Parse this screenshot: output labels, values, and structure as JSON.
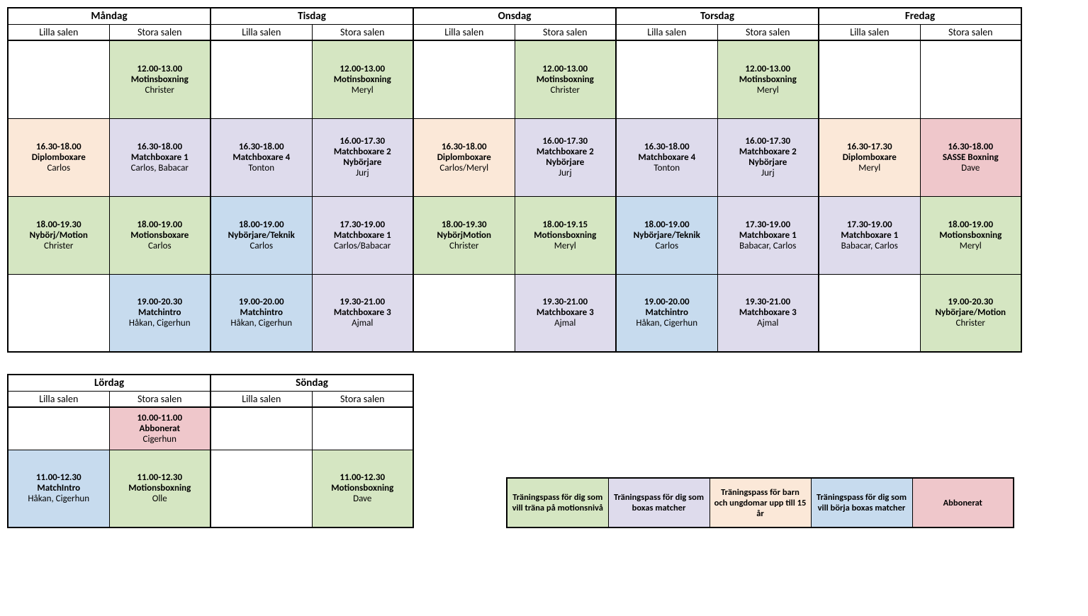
{
  "colors": {
    "green": "#d5e6c2",
    "purple": "#dedbec",
    "peach": "#fbe8d8",
    "blue": "#c7dbee",
    "pink": "#efc7cb",
    "white": "#ffffff"
  },
  "rooms": [
    "Lilla salen",
    "Stora salen"
  ],
  "weekdays": [
    {
      "name": "Måndag",
      "rows": [
        [
          null,
          {
            "time": "12.00-13.00",
            "title": "Motinsboxning",
            "instr": "Christer",
            "color": "green"
          }
        ],
        [
          {
            "time": "16.30-18.00",
            "title": "Diplomboxare",
            "instr": "Carlos",
            "color": "peach"
          },
          {
            "time": "16.30-18.00",
            "title": "Matchboxare 1",
            "instr": "Carlos, Babacar",
            "color": "purple"
          }
        ],
        [
          {
            "time": "18.00-19.30",
            "title": "Nybörj/Motion",
            "instr": "Christer",
            "color": "green"
          },
          {
            "time": "18.00-19.00",
            "title": "Motionsboxare",
            "instr": "Carlos",
            "color": "green"
          }
        ],
        [
          null,
          {
            "time": "19.00-20.30",
            "title": "Matchintro",
            "instr": "Håkan, Cigerhun",
            "color": "blue"
          }
        ]
      ]
    },
    {
      "name": "Tisdag",
      "rows": [
        [
          null,
          {
            "time": "12.00-13.00",
            "title": "Motinsboxning",
            "instr": "Meryl",
            "color": "green"
          }
        ],
        [
          {
            "time": "16.30-18.00",
            "title": "Matchboxare 4",
            "instr": "Tonton",
            "color": "purple"
          },
          {
            "time": "16.00-17.30",
            "title": "Matchboxare 2 Nybörjare",
            "instr": "Jurj",
            "color": "purple"
          }
        ],
        [
          {
            "time": "18.00-19.00",
            "title": "Nybörjare/Teknik",
            "instr": "Carlos",
            "color": "blue"
          },
          {
            "time": "17.30-19.00",
            "title": "Matchboxare 1",
            "instr": "Carlos/Babacar",
            "color": "purple"
          }
        ],
        [
          {
            "time": "19.00-20.00",
            "title": "Matchintro",
            "instr": "Håkan, Cigerhun",
            "color": "blue"
          },
          {
            "time": "19.30-21.00",
            "title": "Matchboxare 3",
            "instr": "Ajmal",
            "color": "purple"
          }
        ]
      ]
    },
    {
      "name": "Onsdag",
      "rows": [
        [
          null,
          {
            "time": "12.00-13.00",
            "title": "Motinsboxning",
            "instr": "Christer",
            "color": "green"
          }
        ],
        [
          {
            "time": "16.30-18.00",
            "title": "Diplomboxare",
            "instr": "Carlos/Meryl",
            "color": "peach"
          },
          {
            "time": "16.00-17.30",
            "title": "Matchboxare 2 Nybörjare",
            "instr": "Jurj",
            "color": "purple"
          }
        ],
        [
          {
            "time": "18.00-19.30",
            "title": "NybörjMotion",
            "instr": "Christer",
            "color": "green"
          },
          {
            "time": "18.00-19.15",
            "title": "Motionsboxning",
            "instr": "Meryl",
            "color": "green"
          }
        ],
        [
          null,
          {
            "time": "19.30-21.00",
            "title": "Matchboxare 3",
            "instr": "Ajmal",
            "color": "purple"
          }
        ]
      ]
    },
    {
      "name": "Torsdag",
      "rows": [
        [
          null,
          {
            "time": "12.00-13.00",
            "title": "Motinsboxning",
            "instr": "Meryl",
            "color": "green"
          }
        ],
        [
          {
            "time": "16.30-18.00",
            "title": "Matchboxare 4",
            "instr": "Tonton",
            "color": "purple"
          },
          {
            "time": "16.00-17.30",
            "title": "Matchboxare 2 Nybörjare",
            "instr": "Jurj",
            "color": "purple"
          }
        ],
        [
          {
            "time": "18.00-19.00",
            "title": "Nybörjare/Teknik",
            "instr": "Carlos",
            "color": "blue"
          },
          {
            "time": "17.30-19.00",
            "title": "Matchboxare 1",
            "instr": "Babacar, Carlos",
            "color": "purple"
          }
        ],
        [
          {
            "time": "19.00-20.00",
            "title": "Matchintro",
            "instr": "Håkan, Cigerhun",
            "color": "blue"
          },
          {
            "time": "19.30-21.00",
            "title": "Matchboxare 3",
            "instr": "Ajmal",
            "color": "purple"
          }
        ]
      ]
    },
    {
      "name": "Fredag",
      "rows": [
        [
          null,
          null
        ],
        [
          {
            "time": "16.30-17.30",
            "title": "Diplomboxare",
            "instr": "Meryl",
            "color": "peach"
          },
          {
            "time": "16.30-18.00",
            "title": "SASSE Boxning",
            "instr": "Dave",
            "color": "pink"
          }
        ],
        [
          {
            "time": "17.30-19.00",
            "title": "Matchboxare 1",
            "instr": "Babacar, Carlos",
            "color": "purple"
          },
          {
            "time": "18.00-19.00",
            "title": "Motionsboxning",
            "instr": "Meryl",
            "color": "green"
          }
        ],
        [
          null,
          {
            "time": "19.00-20.30",
            "title": "Nybörjare/Motion",
            "instr": "Christer",
            "color": "green"
          }
        ]
      ]
    }
  ],
  "weekend": [
    {
      "name": "Lördag",
      "rows": [
        [
          null,
          {
            "time": "10.00-11.00",
            "title": "Abbonerat",
            "instr": "Cigerhun",
            "color": "pink"
          }
        ],
        [
          {
            "time": "11.00-12.30",
            "title": "MatchIntro",
            "instr": "Håkan, Cigerhun",
            "color": "blue"
          },
          {
            "time": "11.00-12.30",
            "title": "Motionsboxning",
            "instr": "Olle",
            "color": "green"
          }
        ]
      ]
    },
    {
      "name": "Söndag",
      "rows": [
        [
          null,
          null
        ],
        [
          null,
          {
            "time": "11.00-12.30",
            "title": "Motionsboxning",
            "instr": "Dave",
            "color": "green"
          }
        ]
      ]
    }
  ],
  "legend": [
    {
      "text": "Träningspass för dig som vill träna på motionsnivå",
      "color": "green"
    },
    {
      "text": "Träningspass för dig som boxas matcher",
      "color": "purple"
    },
    {
      "text": "Träningspass för barn och ungdomar upp till 15 år",
      "color": "peach"
    },
    {
      "text": "Träningspass för dig som vill börja boxas matcher",
      "color": "blue"
    },
    {
      "text": "Abbonerat",
      "color": "pink"
    }
  ]
}
